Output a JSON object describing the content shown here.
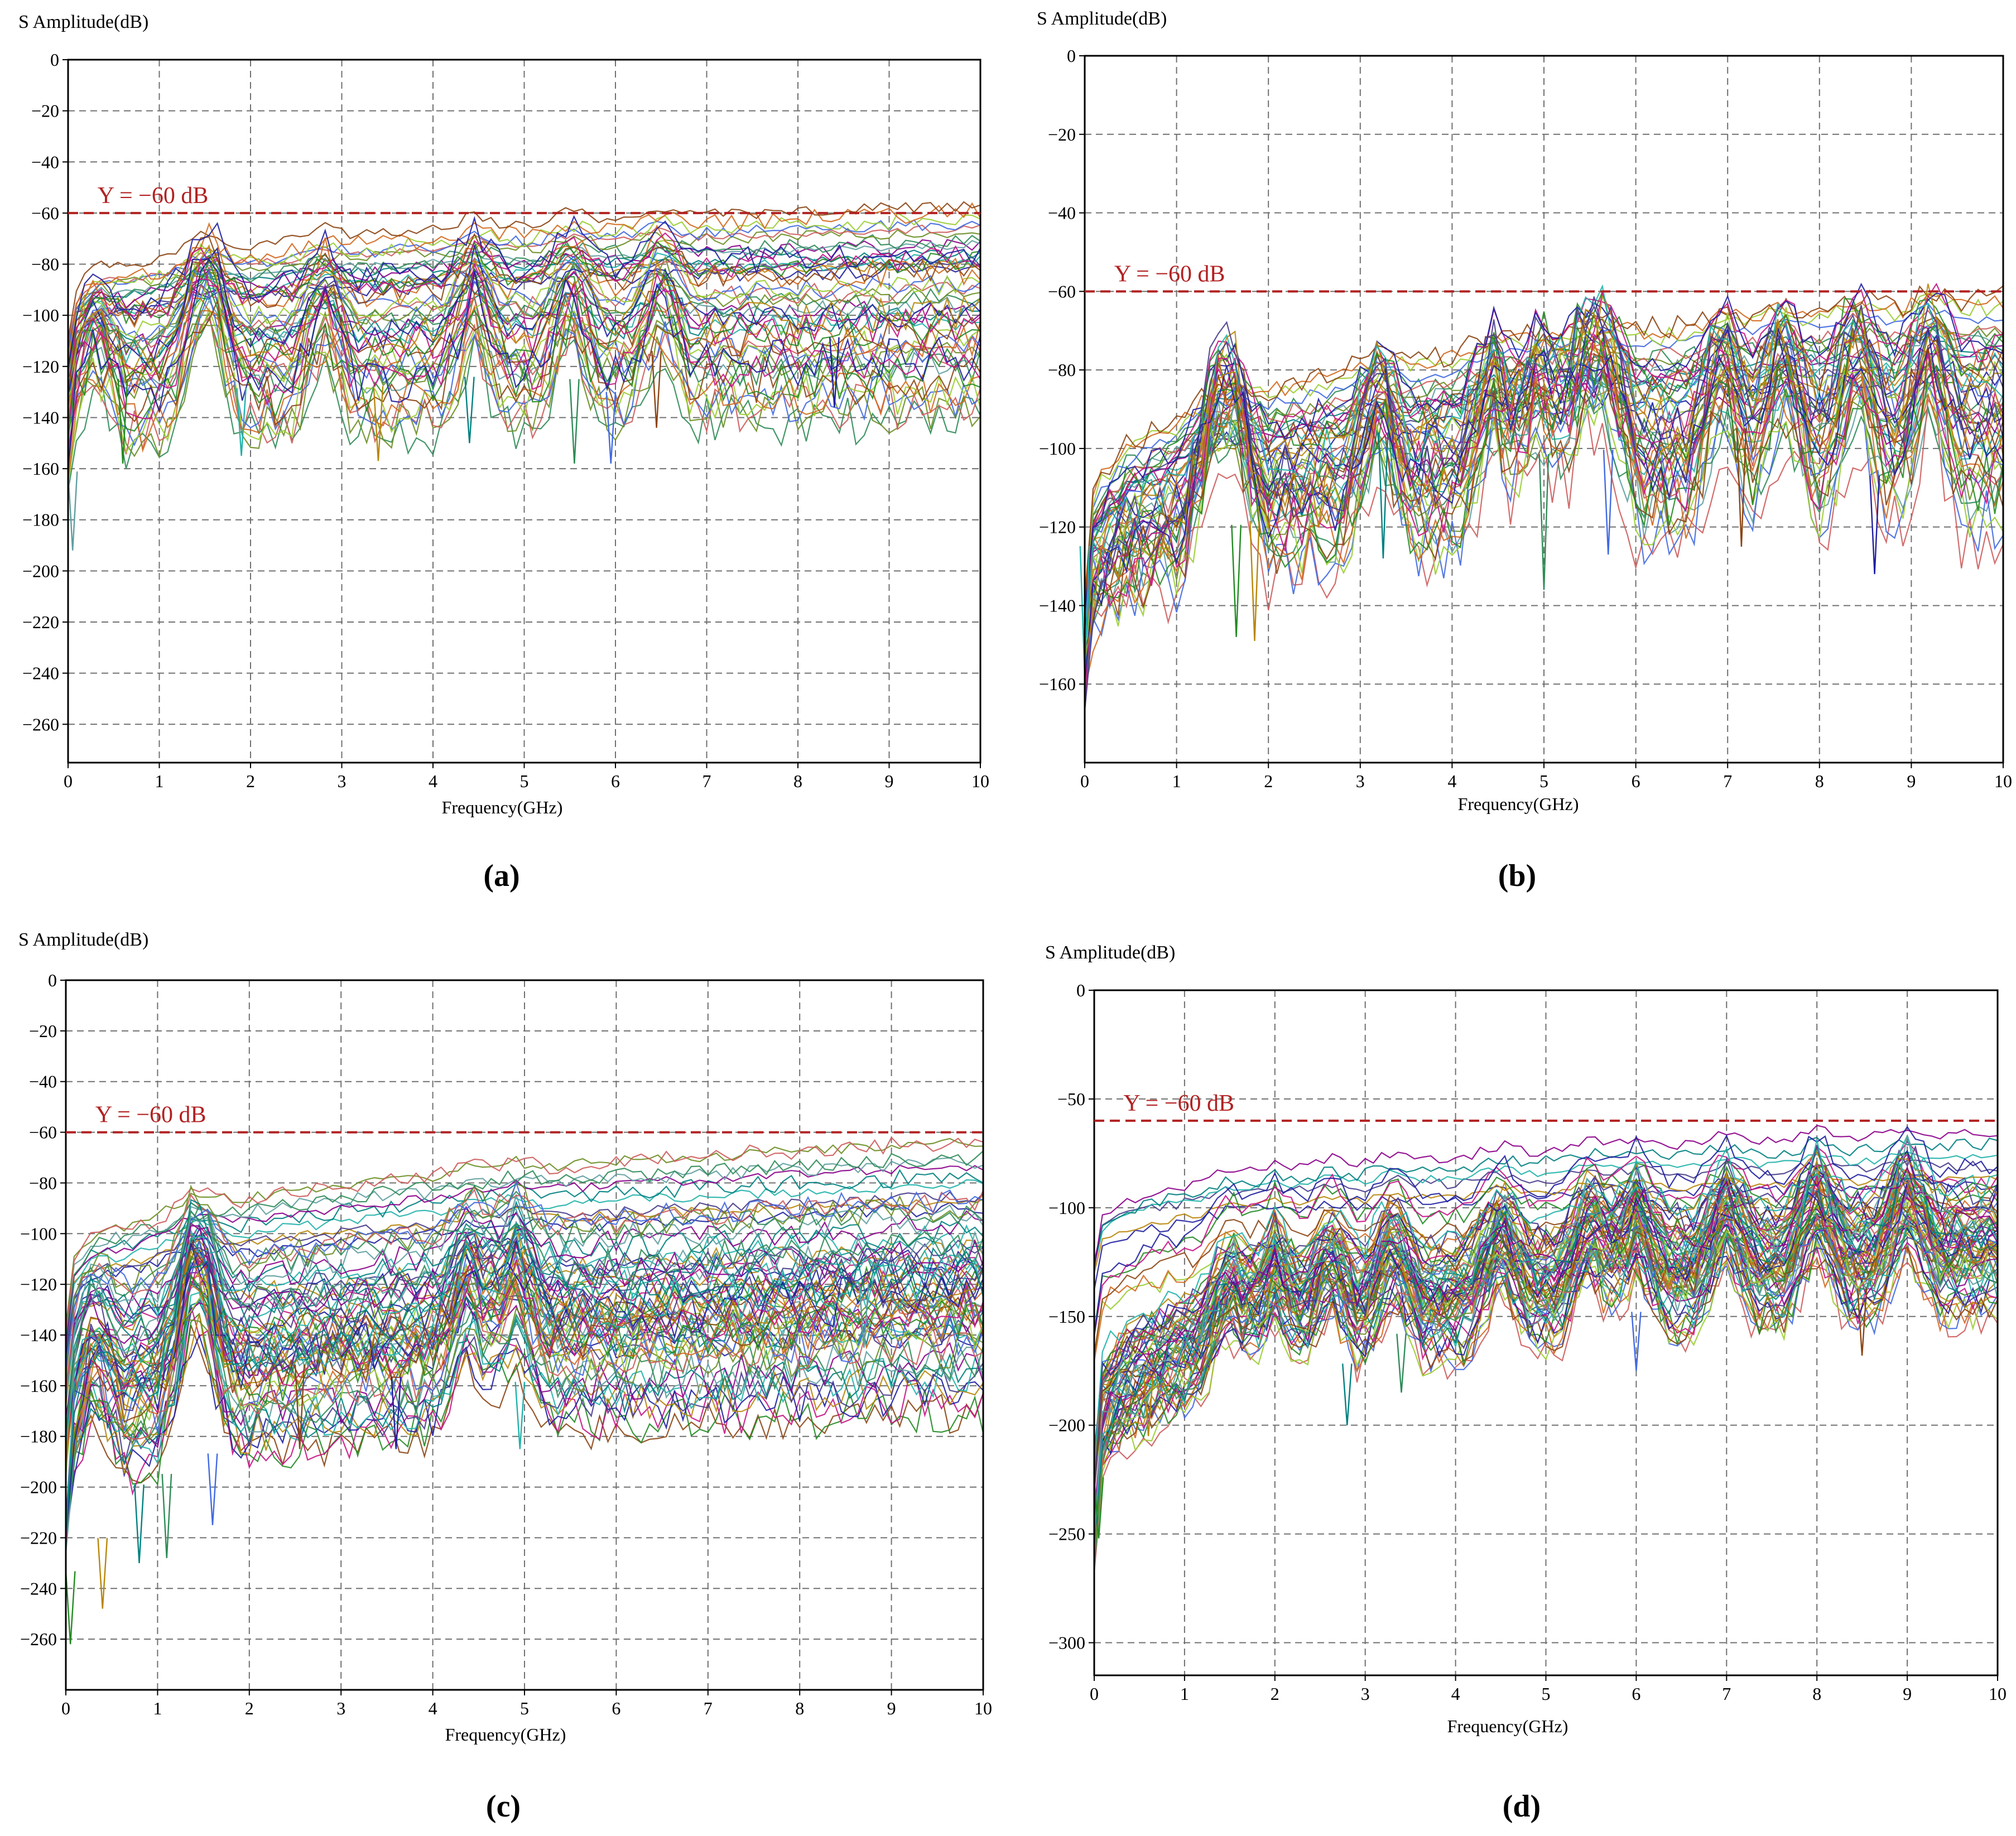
{
  "figure": {
    "colors": {
      "threshold": "#b22222",
      "grid": "#707070",
      "axis": "#000000",
      "trace_palette": [
        "#1f1fa0",
        "#2e8b57",
        "#228b22",
        "#8b008b",
        "#d2691e",
        "#20b2aa",
        "#4169e1",
        "#b8860b",
        "#6b8e23",
        "#c71585",
        "#5f9ea0",
        "#8b4513",
        "#008080",
        "#9acd32",
        "#483d8b",
        "#cd5c5c"
      ]
    },
    "chart_data": [
      {
        "id": "a",
        "panel_label": "(a)",
        "type": "line",
        "title": "",
        "ylabel": "S Amplitude(dB)",
        "xlabel": "Frequency(GHz)",
        "xlim": [
          0,
          10
        ],
        "ylim": [
          -275,
          0
        ],
        "xticks": [
          0,
          1,
          2,
          3,
          4,
          5,
          6,
          7,
          8,
          9,
          10
        ],
        "yticks": [
          0,
          -20,
          -40,
          -60,
          -80,
          -100,
          -120,
          -140,
          -160,
          -180,
          -200,
          -220,
          -240,
          -260
        ],
        "grid": true,
        "threshold": {
          "y": -60,
          "label": "Y = −60 dB"
        },
        "bands": [
          {
            "from": -82,
            "to": -58,
            "lines": 14,
            "start": -112
          },
          {
            "from": -102,
            "to": -76,
            "lines": 14,
            "start": -128
          },
          {
            "from": -120,
            "to": -98,
            "lines": 12,
            "start": -140
          },
          {
            "from": -140,
            "to": -116,
            "lines": 10,
            "start": -158
          }
        ],
        "resonances": [
          0.3,
          1.4,
          1.6,
          2.8,
          4.45,
          5.5,
          6.5
        ],
        "dips": [
          {
            "x": 0.6,
            "y": -158
          },
          {
            "x": 3.4,
            "y": -157
          },
          {
            "x": 4.4,
            "y": -150
          },
          {
            "x": 5.55,
            "y": -158
          },
          {
            "x": 5.95,
            "y": -158
          },
          {
            "x": 6.45,
            "y": -144
          },
          {
            "x": 8.4,
            "y": -136
          },
          {
            "x": 1.9,
            "y": -155
          },
          {
            "x": 0.05,
            "y": -192
          }
        ]
      },
      {
        "id": "b",
        "panel_label": "(b)",
        "type": "line",
        "title": "",
        "ylabel": "S Amplitude(dB)",
        "xlabel": "Frequency(GHz)",
        "xlim": [
          0,
          10
        ],
        "ylim": [
          -180,
          0
        ],
        "xticks": [
          0,
          1,
          2,
          3,
          4,
          5,
          6,
          7,
          8,
          9,
          10
        ],
        "yticks": [
          0,
          -20,
          -40,
          -60,
          -80,
          -100,
          -120,
          -140,
          -160
        ],
        "grid": true,
        "threshold": {
          "y": -60,
          "label": "Y = −60 dB"
        },
        "bands": [
          {
            "from": -82,
            "to": -62,
            "lines": 14,
            "start": -140
          },
          {
            "from": -98,
            "to": -72,
            "lines": 14,
            "start": -148
          },
          {
            "from": -112,
            "to": -82,
            "lines": 14,
            "start": -150
          },
          {
            "from": -122,
            "to": -95,
            "lines": 10,
            "start": -155
          }
        ],
        "resonances": [
          1.4,
          1.65,
          3.2,
          4.45,
          4.95,
          5.4,
          5.7,
          6.95,
          7.6,
          8.4,
          9.2
        ],
        "dips": [
          {
            "x": 1.65,
            "y": -148
          },
          {
            "x": 1.85,
            "y": -149
          },
          {
            "x": 3.25,
            "y": -128
          },
          {
            "x": 5.0,
            "y": -136
          },
          {
            "x": 5.7,
            "y": -127
          },
          {
            "x": 7.15,
            "y": -125
          },
          {
            "x": 8.6,
            "y": -132
          },
          {
            "x": 0.0,
            "y": -158
          }
        ]
      },
      {
        "id": "c",
        "panel_label": "(c)",
        "type": "line",
        "title": "",
        "ylabel": "S Amplitude(dB)",
        "xlabel": "Frequency(GHz)",
        "xlim": [
          0,
          10
        ],
        "ylim": [
          -280,
          0
        ],
        "xticks": [
          0,
          1,
          2,
          3,
          4,
          5,
          6,
          7,
          8,
          9,
          10
        ],
        "yticks": [
          0,
          -20,
          -40,
          -60,
          -80,
          -100,
          -120,
          -140,
          -160,
          -180,
          -200,
          -220,
          -240,
          -260
        ],
        "grid": true,
        "threshold": {
          "y": -60,
          "label": "Y = −60 dB"
        },
        "bands": [
          {
            "from": -90,
            "to": -62,
            "lines": 10,
            "start": -140
          },
          {
            "from": -112,
            "to": -85,
            "lines": 12,
            "start": -160
          },
          {
            "from": -140,
            "to": -105,
            "lines": 24,
            "start": -185
          },
          {
            "from": -170,
            "to": -115,
            "lines": 24,
            "start": -220
          }
        ],
        "resonances": [
          0.3,
          1.35,
          1.5,
          4.4,
          4.9
        ],
        "dips": [
          {
            "x": 0.05,
            "y": -262
          },
          {
            "x": 0.4,
            "y": -248
          },
          {
            "x": 0.8,
            "y": -230
          },
          {
            "x": 1.1,
            "y": -228
          },
          {
            "x": 1.6,
            "y": -215
          },
          {
            "x": 2.55,
            "y": -185
          },
          {
            "x": 3.6,
            "y": -185
          },
          {
            "x": 4.95,
            "y": -185
          },
          {
            "x": 8.7,
            "y": -145
          }
        ]
      },
      {
        "id": "d",
        "panel_label": "(d)",
        "type": "line",
        "title": "",
        "ylabel": "S Amplitude(dB)",
        "xlabel": "Frequency(GHz)",
        "xlim": [
          0,
          10
        ],
        "ylim": [
          -315,
          0
        ],
        "xticks": [
          0,
          1,
          2,
          3,
          4,
          5,
          6,
          7,
          8,
          9,
          10
        ],
        "yticks": [
          0,
          -50,
          -100,
          -150,
          -200,
          -250,
          -300
        ],
        "grid": true,
        "threshold": {
          "y": -60,
          "label": "Y = −60 dB"
        },
        "bands": [
          {
            "from": -90,
            "to": -66,
            "lines": 6,
            "start": -125
          },
          {
            "from": -110,
            "to": -82,
            "lines": 6,
            "start": -160
          },
          {
            "from": -130,
            "to": -92,
            "lines": 30,
            "start": -220
          },
          {
            "from": -150,
            "to": -105,
            "lines": 30,
            "start": -250
          }
        ],
        "resonances": [
          1.5,
          2.0,
          2.6,
          3.3,
          4.5,
          5.5,
          6.0,
          7.0,
          8.0,
          9.0
        ],
        "dips": [
          {
            "x": 0.05,
            "y": -252
          },
          {
            "x": 0.6,
            "y": -205
          },
          {
            "x": 2.8,
            "y": -200
          },
          {
            "x": 3.4,
            "y": -185
          },
          {
            "x": 6.0,
            "y": -175
          },
          {
            "x": 8.5,
            "y": -168
          }
        ]
      }
    ]
  }
}
